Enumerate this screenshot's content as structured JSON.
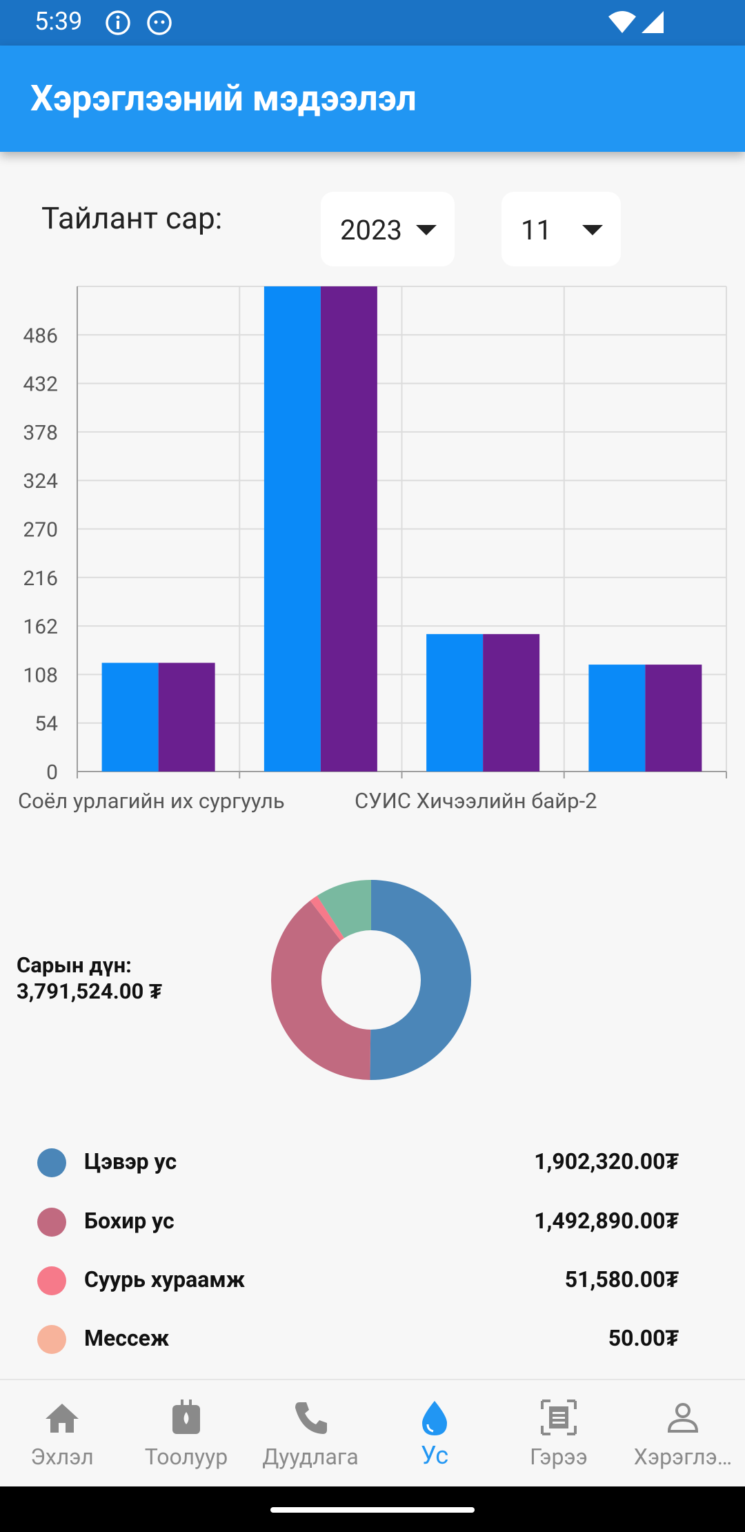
{
  "status_bar": {
    "time": "5:39"
  },
  "app_bar": {
    "title": "Хэрэглээний мэдээлэл"
  },
  "filter": {
    "label": "Тайлант сар:",
    "year": "2023",
    "month": "11"
  },
  "chart_data": {
    "type": "bar",
    "y_ticks": [
      0,
      54,
      108,
      162,
      216,
      270,
      324,
      378,
      432,
      486
    ],
    "ylim": [
      0,
      540
    ],
    "categories": [
      "Соёл урлагийн их сургууль",
      "",
      "СУИС Хичээлийн байр-2",
      ""
    ],
    "series": [
      {
        "color": "#0a8af8",
        "values": [
          121,
          540,
          153,
          119
        ]
      },
      {
        "color": "#6a1f8f",
        "values": [
          121,
          540,
          153,
          119
        ]
      }
    ],
    "grid": true
  },
  "summary": {
    "total_label": "Сарын дүн:",
    "total_value": "3,791,524.00 ₮"
  },
  "breakdown": {
    "items": [
      {
        "name": "Цэвэр ус",
        "amount": "1,902,320.00₮",
        "value": 1902320,
        "color": "#4b86b8"
      },
      {
        "name": "Бохир ус",
        "amount": "1,492,890.00₮",
        "value": 1492890,
        "color": "#c16a80"
      },
      {
        "name": "Суурь хураамж",
        "amount": "51,580.00₮",
        "value": 51580,
        "color": "#f67a8a"
      },
      {
        "name": "Мессеж",
        "amount": "50.00₮",
        "value": 50,
        "color": "#f7b39b"
      }
    ],
    "unlisted_color": "#79b9a0",
    "unlisted_value": 344684
  },
  "bottom_nav": {
    "items": [
      {
        "label": "Эхлэл",
        "icon": "home-icon"
      },
      {
        "label": "Тоолуур",
        "icon": "meter-icon"
      },
      {
        "label": "Дуудлага",
        "icon": "phone-icon"
      },
      {
        "label": "Ус",
        "icon": "water-drop-icon",
        "active": true
      },
      {
        "label": "Гэрээ",
        "icon": "contract-icon"
      },
      {
        "label": "Хэрэглэ…",
        "icon": "user-icon"
      }
    ]
  }
}
